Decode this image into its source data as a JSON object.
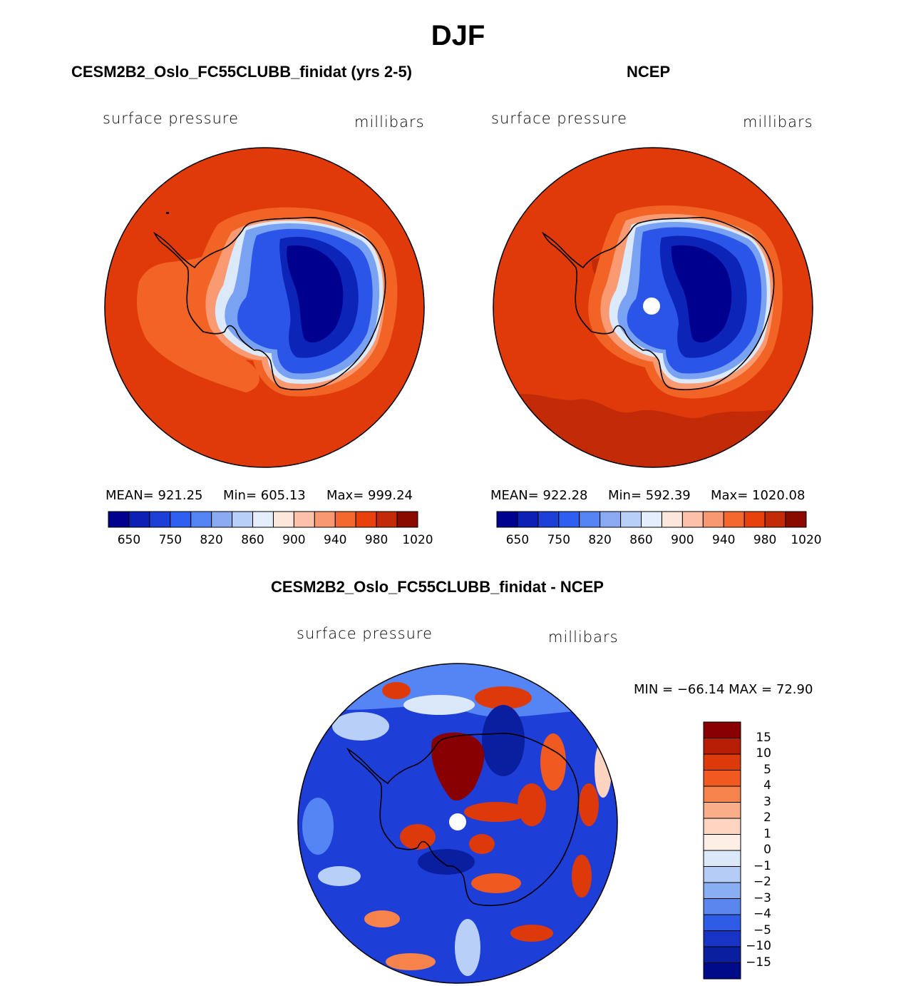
{
  "title": "DJF",
  "panels": [
    {
      "id": "model",
      "title": "CESM2B2_Oslo_FC55CLUBB_finidat (yrs 2-5)",
      "variable": "surface pressure",
      "units": "millibars",
      "mean": "MEAN= 921.25",
      "min": "Min= 605.13",
      "max": "Max= 999.24",
      "colorbar_labels": [
        "650",
        "750",
        "820",
        "860",
        "900",
        "940",
        "980",
        "1020"
      ]
    },
    {
      "id": "obs",
      "title": "NCEP",
      "variable": "surface pressure",
      "units": "millibars",
      "mean": "MEAN= 922.28",
      "min": "Min= 592.39",
      "max": "Max= 1020.08",
      "colorbar_labels": [
        "650",
        "750",
        "820",
        "860",
        "900",
        "940",
        "980",
        "1020"
      ]
    }
  ],
  "diff": {
    "title": "CESM2B2_Oslo_FC55CLUBB_finidat - NCEP",
    "variable": "surface pressure",
    "units": "millibars",
    "minmax": "MIN = −66.14  MAX =   72.90",
    "colorbar_labels": [
      "15",
      "10",
      "5",
      "4",
      "3",
      "2",
      "1",
      "0",
      "−1",
      "−2",
      "−3",
      "−4",
      "−5",
      "−10",
      "−15"
    ]
  },
  "colors": {
    "abs_scale": [
      "#00008f",
      "#0a1fb4",
      "#1e3ed8",
      "#2f5ff0",
      "#5585f4",
      "#88abf4",
      "#b8cff8",
      "#e4eefc",
      "#fde7dc",
      "#fbc2a8",
      "#f79872",
      "#f4682e",
      "#e8410c",
      "#c22a08",
      "#8a0a00"
    ],
    "diff_scale": [
      "#880000",
      "#b81e05",
      "#dd3a0c",
      "#f05a20",
      "#f6824c",
      "#f9ad88",
      "#fdd4bf",
      "#fdeee6",
      "#dbe8f9",
      "#b4ccf6",
      "#8aaef2",
      "#5b86ee",
      "#2e5ce6",
      "#1834c4",
      "#0a1fa0",
      "#000b8a"
    ]
  }
}
